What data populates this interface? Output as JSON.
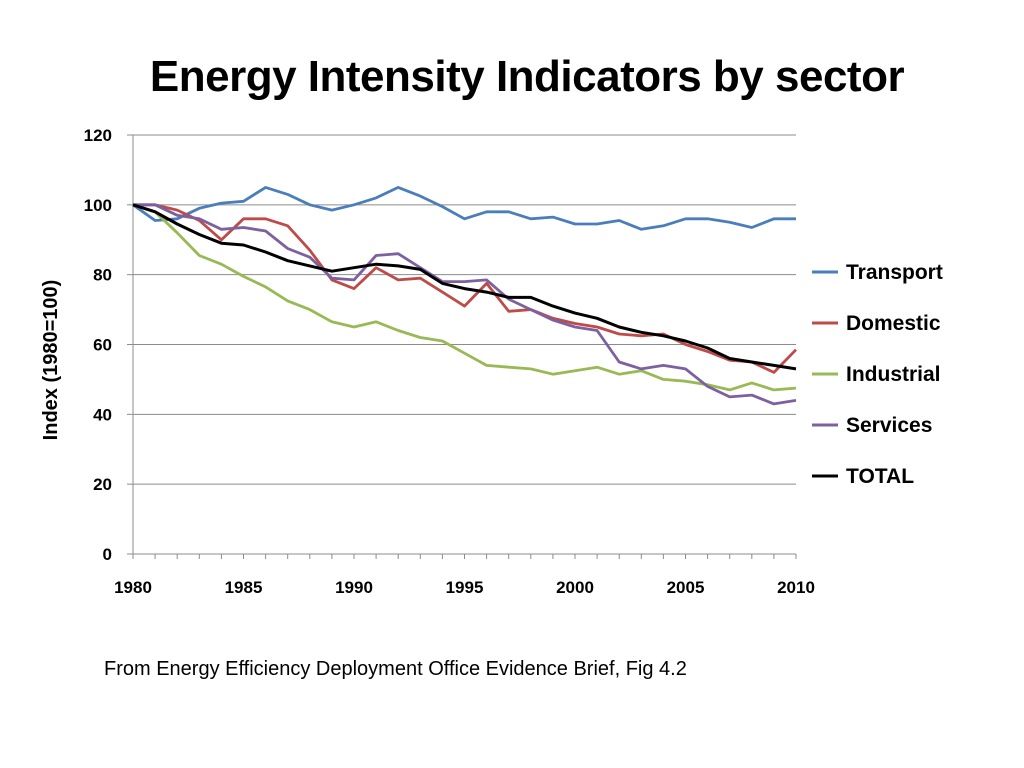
{
  "title": "Energy Intensity Indicators by sector",
  "caption": "From Energy Efficiency Deployment Office Evidence Brief, Fig 4.2",
  "chart_data": {
    "type": "line",
    "title": "",
    "xlabel": "",
    "ylabel": "Index (1980=100)",
    "xlim": [
      1980,
      2010
    ],
    "ylim": [
      0,
      120
    ],
    "x_ticks": [
      1980,
      1985,
      1990,
      1995,
      2000,
      2005,
      2010
    ],
    "y_ticks": [
      0,
      20,
      40,
      60,
      80,
      100,
      120
    ],
    "grid": "horizontal",
    "legend_position": "right",
    "x": [
      1980,
      1981,
      1982,
      1983,
      1984,
      1985,
      1986,
      1987,
      1988,
      1989,
      1990,
      1991,
      1992,
      1993,
      1994,
      1995,
      1996,
      1997,
      1998,
      1999,
      2000,
      2001,
      2002,
      2003,
      2004,
      2005,
      2006,
      2007,
      2008,
      2009,
      2010
    ],
    "series": [
      {
        "name": "Transport",
        "color": "#4a7ebb",
        "values": [
          100,
          95.5,
          96,
          99,
          100.5,
          101,
          105,
          103,
          100,
          98.5,
          100,
          102,
          105,
          102.5,
          99.5,
          96,
          98,
          98,
          96,
          96.5,
          94.5,
          94.5,
          95.5,
          93,
          94,
          96,
          96,
          95,
          93.5,
          96,
          96
        ]
      },
      {
        "name": "Domestic",
        "color": "#be4b48",
        "values": [
          100,
          100,
          98.5,
          95.5,
          90,
          96,
          96,
          94,
          87,
          78.5,
          76,
          82,
          78.5,
          79,
          75,
          71,
          77.5,
          69.5,
          70,
          67.5,
          66,
          65,
          63,
          62.5,
          63,
          60,
          58,
          55.5,
          55,
          52,
          58.5
        ]
      },
      {
        "name": "Industrial",
        "color": "#98b954",
        "values": [
          100,
          98,
          92,
          85.5,
          83,
          79.5,
          76.5,
          72.5,
          70,
          66.5,
          65,
          66.5,
          64,
          62,
          61,
          57.5,
          54,
          53.5,
          53,
          51.5,
          52.5,
          53.5,
          51.5,
          52.5,
          50,
          49.5,
          48.5,
          47,
          49,
          47,
          47.5
        ]
      },
      {
        "name": "Services",
        "color": "#7d60a0",
        "values": [
          100,
          100,
          97,
          96,
          93,
          93.5,
          92.5,
          87.5,
          85,
          79,
          78.5,
          85.5,
          86,
          82,
          78,
          78,
          78.5,
          73,
          70,
          67,
          65,
          64,
          55,
          53,
          54,
          53,
          48,
          45,
          45.5,
          43,
          44
        ]
      },
      {
        "name": "TOTAL",
        "color": "#000000",
        "values": [
          100,
          98,
          94.5,
          91.5,
          89,
          88.5,
          86.5,
          84,
          82.5,
          81,
          82,
          83,
          82.5,
          81.5,
          77.5,
          76,
          75,
          73.5,
          73.5,
          71,
          69,
          67.5,
          65,
          63.5,
          62.5,
          61,
          59,
          56,
          55,
          54,
          53
        ]
      }
    ]
  }
}
